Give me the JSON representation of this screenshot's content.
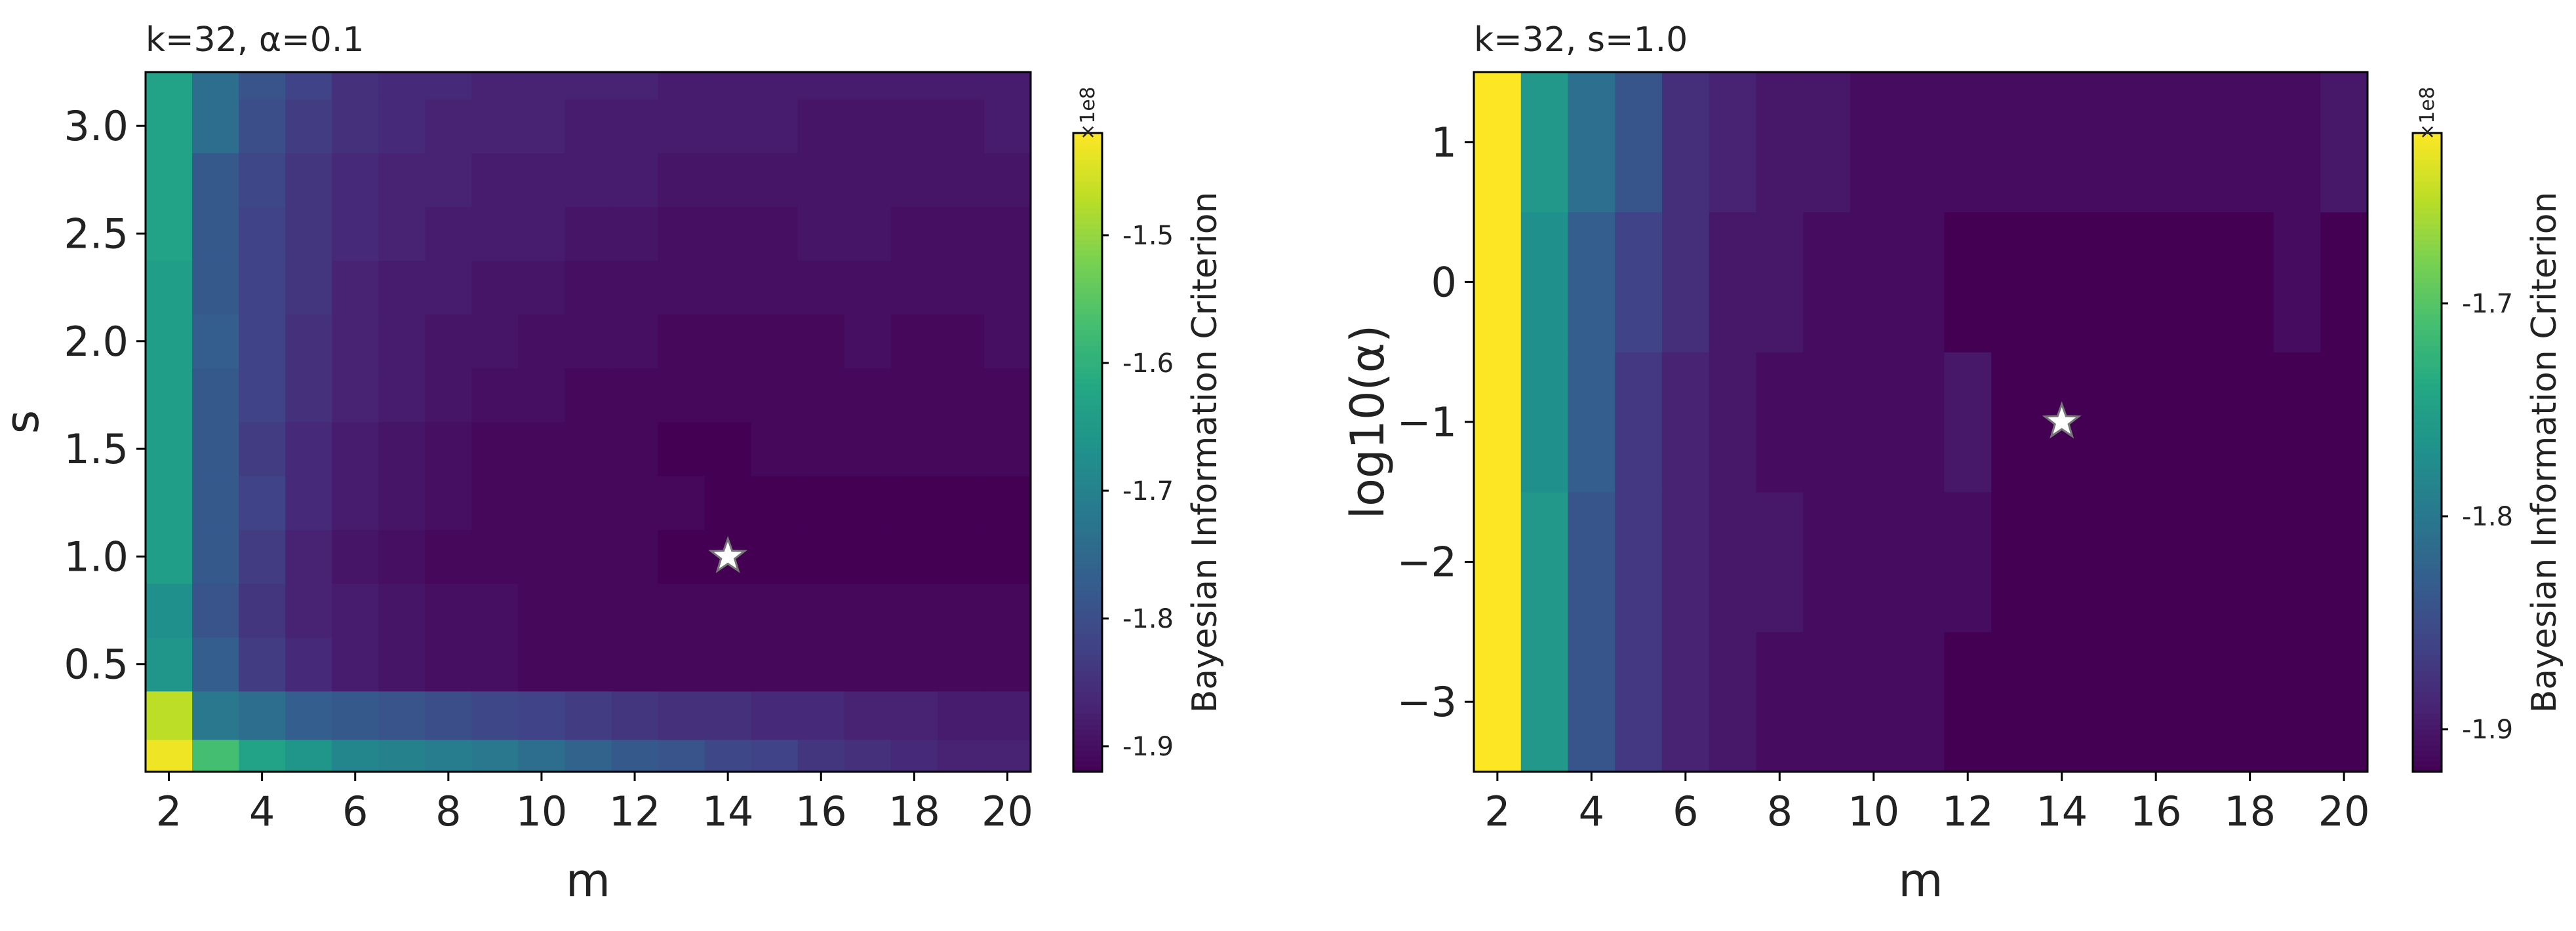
{
  "chart_data": [
    {
      "type": "heatmap",
      "title": "k=32, α=0.1",
      "xlabel": "m",
      "ylabel": "s",
      "x": [
        2,
        3,
        4,
        5,
        6,
        7,
        8,
        9,
        10,
        11,
        12,
        13,
        14,
        15,
        16,
        17,
        18,
        19,
        20
      ],
      "y": [
        0.05,
        0.3,
        0.5,
        0.75,
        1.0,
        1.25,
        1.5,
        1.75,
        2.0,
        2.25,
        2.5,
        2.75,
        3.0,
        3.25
      ],
      "xticks": [
        2,
        4,
        6,
        8,
        10,
        12,
        14,
        16,
        18,
        20
      ],
      "xtick_labels": [
        "2",
        "4",
        "6",
        "8",
        "10",
        "12",
        "14",
        "16",
        "18",
        "20"
      ],
      "yticks": [
        0.5,
        1.0,
        1.5,
        2.0,
        2.5,
        3.0
      ],
      "ytick_labels": [
        "0.5",
        "1.0",
        "1.5",
        "2.0",
        "2.5",
        "3.0"
      ],
      "values": [
        [
          -1.43,
          -1.57,
          -1.63,
          -1.66,
          -1.69,
          -1.7,
          -1.71,
          -1.72,
          -1.74,
          -1.76,
          -1.78,
          -1.79,
          -1.81,
          -1.82,
          -1.84,
          -1.85,
          -1.86,
          -1.87,
          -1.87
        ],
        [
          -1.47,
          -1.72,
          -1.74,
          -1.77,
          -1.78,
          -1.79,
          -1.8,
          -1.81,
          -1.82,
          -1.83,
          -1.84,
          -1.85,
          -1.85,
          -1.86,
          -1.86,
          -1.87,
          -1.87,
          -1.88,
          -1.88
        ],
        [
          -1.66,
          -1.77,
          -1.83,
          -1.86,
          -1.88,
          -1.89,
          -1.9,
          -1.9,
          -1.91,
          -1.91,
          -1.91,
          -1.91,
          -1.91,
          -1.91,
          -1.91,
          -1.91,
          -1.91,
          -1.91,
          -1.91
        ],
        [
          -1.67,
          -1.79,
          -1.84,
          -1.87,
          -1.88,
          -1.89,
          -1.9,
          -1.9,
          -1.91,
          -1.91,
          -1.91,
          -1.91,
          -1.91,
          -1.91,
          -1.91,
          -1.91,
          -1.91,
          -1.91,
          -1.91
        ],
        [
          -1.64,
          -1.78,
          -1.83,
          -1.87,
          -1.89,
          -1.9,
          -1.91,
          -1.91,
          -1.91,
          -1.91,
          -1.91,
          -1.92,
          -1.92,
          -1.92,
          -1.92,
          -1.92,
          -1.92,
          -1.92,
          -1.92
        ],
        [
          -1.64,
          -1.78,
          -1.82,
          -1.86,
          -1.88,
          -1.89,
          -1.9,
          -1.91,
          -1.91,
          -1.91,
          -1.91,
          -1.91,
          -1.92,
          -1.92,
          -1.92,
          -1.92,
          -1.92,
          -1.92,
          -1.92
        ],
        [
          -1.64,
          -1.78,
          -1.83,
          -1.86,
          -1.88,
          -1.89,
          -1.9,
          -1.91,
          -1.91,
          -1.91,
          -1.91,
          -1.92,
          -1.92,
          -1.91,
          -1.91,
          -1.91,
          -1.91,
          -1.91,
          -1.91
        ],
        [
          -1.64,
          -1.78,
          -1.82,
          -1.85,
          -1.87,
          -1.88,
          -1.89,
          -1.9,
          -1.9,
          -1.91,
          -1.91,
          -1.91,
          -1.91,
          -1.91,
          -1.91,
          -1.91,
          -1.91,
          -1.91,
          -1.91
        ],
        [
          -1.64,
          -1.77,
          -1.82,
          -1.85,
          -1.87,
          -1.88,
          -1.89,
          -1.89,
          -1.9,
          -1.9,
          -1.9,
          -1.91,
          -1.91,
          -1.91,
          -1.91,
          -1.9,
          -1.91,
          -1.91,
          -1.9
        ],
        [
          -1.64,
          -1.78,
          -1.82,
          -1.84,
          -1.87,
          -1.88,
          -1.88,
          -1.89,
          -1.89,
          -1.9,
          -1.9,
          -1.9,
          -1.9,
          -1.9,
          -1.9,
          -1.9,
          -1.9,
          -1.9,
          -1.9
        ],
        [
          -1.63,
          -1.78,
          -1.82,
          -1.84,
          -1.86,
          -1.87,
          -1.88,
          -1.88,
          -1.88,
          -1.89,
          -1.89,
          -1.9,
          -1.9,
          -1.9,
          -1.89,
          -1.89,
          -1.9,
          -1.9,
          -1.9
        ],
        [
          -1.63,
          -1.78,
          -1.81,
          -1.84,
          -1.86,
          -1.87,
          -1.87,
          -1.88,
          -1.88,
          -1.88,
          -1.88,
          -1.89,
          -1.89,
          -1.89,
          -1.89,
          -1.89,
          -1.89,
          -1.89,
          -1.89
        ],
        [
          -1.63,
          -1.74,
          -1.8,
          -1.83,
          -1.85,
          -1.86,
          -1.87,
          -1.87,
          -1.87,
          -1.88,
          -1.88,
          -1.88,
          -1.88,
          -1.88,
          -1.89,
          -1.89,
          -1.89,
          -1.89,
          -1.88
        ],
        [
          -1.63,
          -1.74,
          -1.79,
          -1.82,
          -1.85,
          -1.86,
          -1.86,
          -1.87,
          -1.87,
          -1.87,
          -1.87,
          -1.88,
          -1.88,
          -1.88,
          -1.88,
          -1.88,
          -1.88,
          -1.88,
          -1.88
        ]
      ],
      "colorbar": {
        "vmin": -1.92,
        "vmax": -1.42,
        "ticks": [
          -1.9,
          -1.8,
          -1.7,
          -1.6,
          -1.5
        ],
        "tick_labels": [
          "-1.9",
          "-1.8",
          "-1.7",
          "-1.6",
          "-1.5"
        ],
        "label": "Bayesian Information Criterion",
        "exponent": "×1e8"
      },
      "optimum": {
        "x": 14,
        "y": 1.0,
        "marker": "star"
      }
    },
    {
      "type": "heatmap",
      "title": "k=32, s=1.0",
      "xlabel": "m",
      "ylabel": "log10(α)",
      "x": [
        2,
        3,
        4,
        5,
        6,
        7,
        8,
        9,
        10,
        11,
        12,
        13,
        14,
        15,
        16,
        17,
        18,
        19,
        20
      ],
      "y": [
        -3,
        -2,
        -1,
        0,
        1
      ],
      "xticks": [
        2,
        4,
        6,
        8,
        10,
        12,
        14,
        16,
        18,
        20
      ],
      "xtick_labels": [
        "2",
        "4",
        "6",
        "8",
        "10",
        "12",
        "14",
        "16",
        "18",
        "20"
      ],
      "yticks": [
        -3,
        -2,
        -1,
        0,
        1
      ],
      "ytick_labels": [
        "−3",
        "−2",
        "−1",
        "0",
        "1"
      ],
      "values": [
        [
          -1.62,
          -1.76,
          -1.84,
          -1.87,
          -1.89,
          -1.9,
          -1.91,
          -1.91,
          -1.91,
          -1.91,
          -1.92,
          -1.92,
          -1.92,
          -1.92,
          -1.92,
          -1.92,
          -1.92,
          -1.92,
          -1.92
        ],
        [
          -1.62,
          -1.76,
          -1.84,
          -1.87,
          -1.89,
          -1.9,
          -1.9,
          -1.91,
          -1.91,
          -1.91,
          -1.91,
          -1.92,
          -1.92,
          -1.92,
          -1.92,
          -1.92,
          -1.92,
          -1.92,
          -1.92
        ],
        [
          -1.62,
          -1.77,
          -1.83,
          -1.87,
          -1.89,
          -1.9,
          -1.91,
          -1.91,
          -1.91,
          -1.91,
          -1.9,
          -1.92,
          -1.92,
          -1.92,
          -1.92,
          -1.92,
          -1.92,
          -1.92,
          -1.92
        ],
        [
          -1.62,
          -1.77,
          -1.83,
          -1.86,
          -1.88,
          -1.9,
          -1.9,
          -1.91,
          -1.91,
          -1.91,
          -1.92,
          -1.92,
          -1.92,
          -1.92,
          -1.92,
          -1.92,
          -1.92,
          -1.91,
          -1.92
        ],
        [
          -1.62,
          -1.76,
          -1.81,
          -1.84,
          -1.88,
          -1.89,
          -1.9,
          -1.9,
          -1.91,
          -1.91,
          -1.91,
          -1.91,
          -1.91,
          -1.91,
          -1.91,
          -1.91,
          -1.91,
          -1.91,
          -1.9
        ]
      ],
      "colorbar": {
        "vmin": -1.92,
        "vmax": -1.62,
        "ticks": [
          -1.9,
          -1.8,
          -1.7
        ],
        "tick_labels": [
          "-1.9",
          "-1.8",
          "-1.7"
        ],
        "label": "Bayesian Information Criterion",
        "exponent": "×1e8"
      },
      "optimum": {
        "x": 14,
        "y": -1,
        "marker": "star"
      }
    }
  ]
}
